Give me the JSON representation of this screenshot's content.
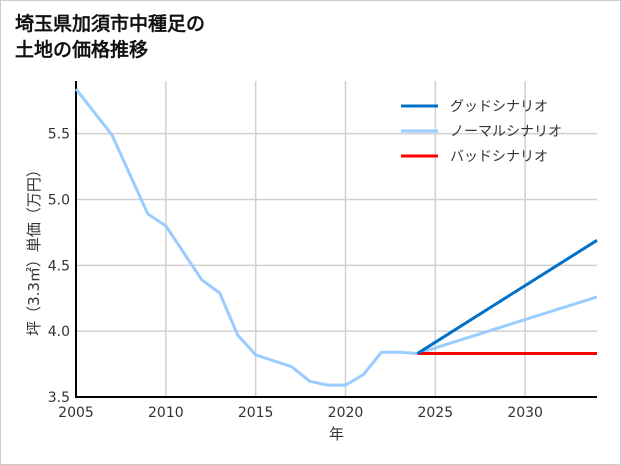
{
  "chart_data": {
    "type": "line",
    "title": "埼玉県加須市中種足の\n土地の価格推移",
    "xlabel": "年",
    "ylabel": "坪（3.3㎡）単価（万円）",
    "xlim": [
      2005,
      2034
    ],
    "ylim": [
      3.5,
      5.9
    ],
    "xticks": [
      2005,
      2010,
      2015,
      2020,
      2025,
      2030
    ],
    "yticks": [
      3.5,
      4.0,
      4.5,
      5.0,
      5.5
    ],
    "ytick_labels": [
      "3.5",
      "4.0",
      "4.5",
      "5.0",
      "5.5"
    ],
    "grid": true,
    "legend": "top-right",
    "series": [
      {
        "name": "グッドシナリオ",
        "color": "#0070c8",
        "x": [
          2024,
          2034
        ],
        "y": [
          3.83,
          4.69
        ]
      },
      {
        "name": "ノーマルシナリオ",
        "color": "#99ccff",
        "x": [
          2005,
          2007,
          2009,
          2010,
          2012,
          2013,
          2014,
          2015,
          2017,
          2018,
          2019,
          2020,
          2021,
          2022,
          2023,
          2024,
          2034
        ],
        "y": [
          5.84,
          5.49,
          4.89,
          4.8,
          4.39,
          4.29,
          3.97,
          3.82,
          3.73,
          3.62,
          3.59,
          3.59,
          3.67,
          3.84,
          3.84,
          3.83,
          4.26
        ]
      },
      {
        "name": "バッドシナリオ",
        "color": "#ff0000",
        "x": [
          2024,
          2034
        ],
        "y": [
          3.83,
          3.83
        ]
      }
    ]
  }
}
